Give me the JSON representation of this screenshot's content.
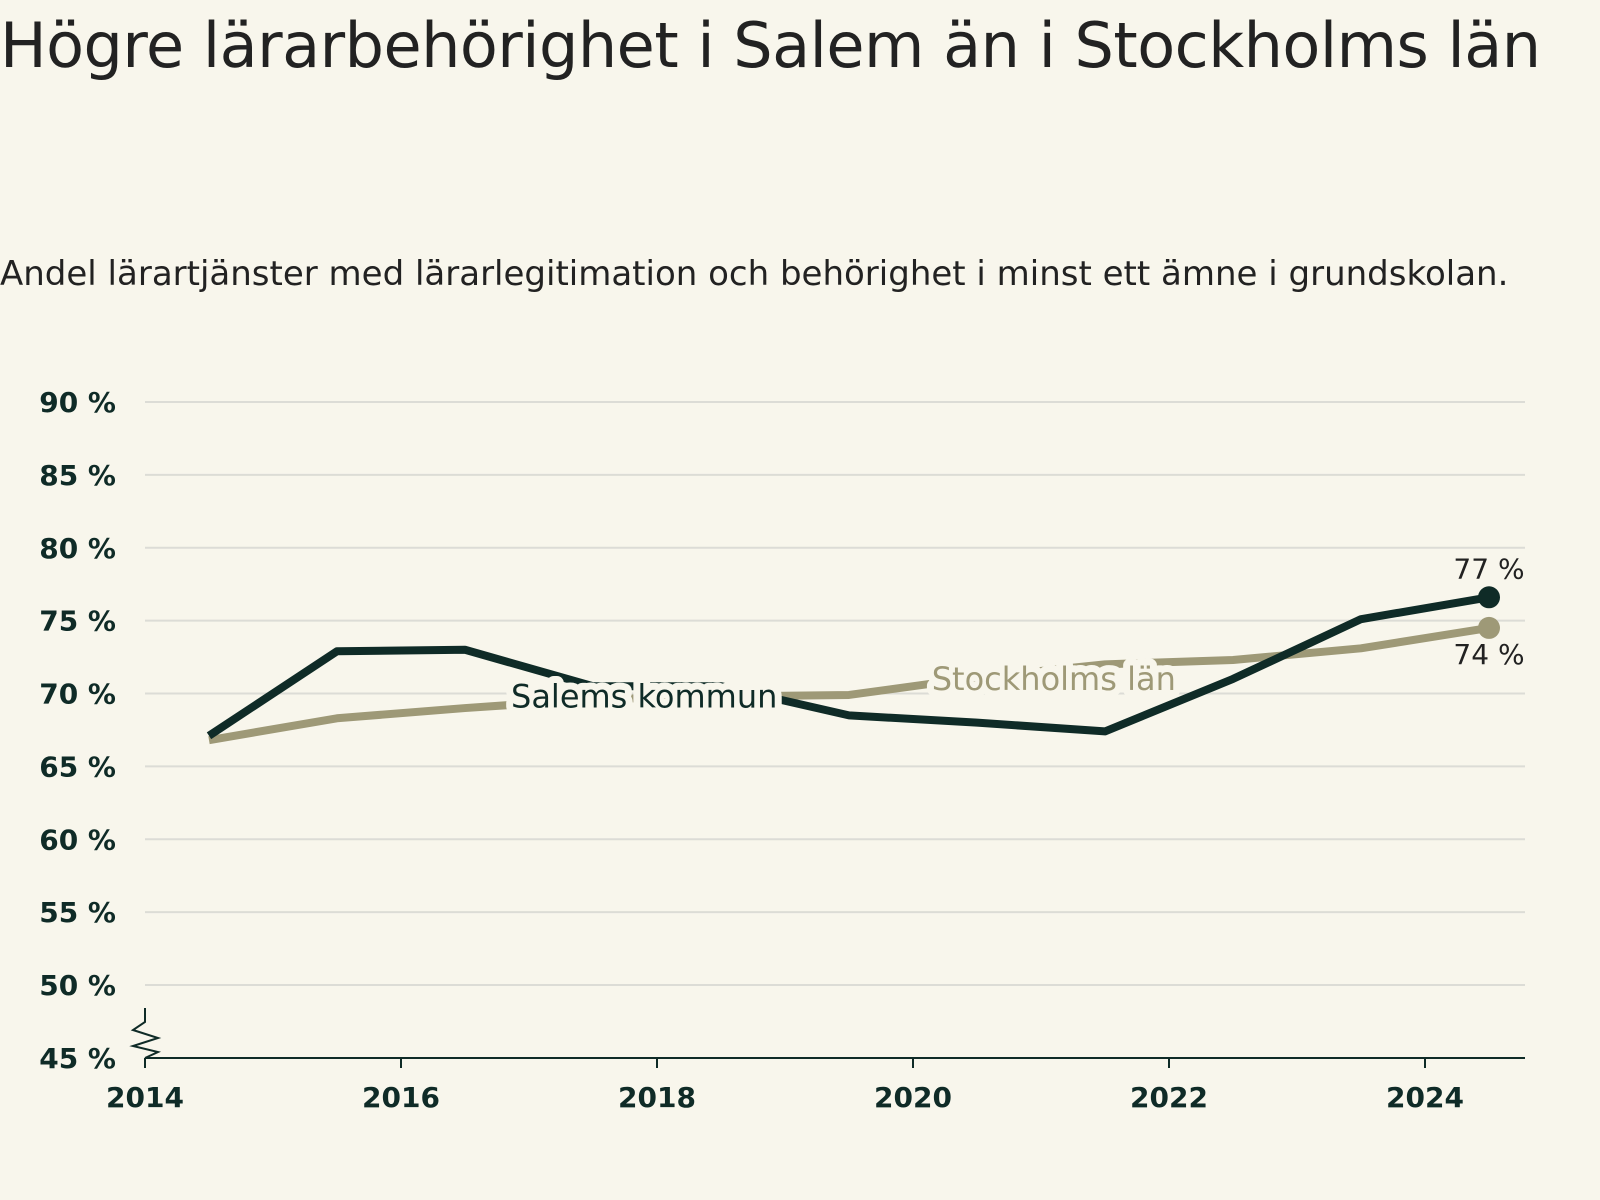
{
  "title": "Högre lärarbehörighet i Salem än i Stockholms län",
  "subtitle": "Andel lärartjänster med lärarlegitimation och behörighet i minst ett ämne i grundskolan.",
  "colors": {
    "background": "#f8f6ec",
    "salem": "#0f2b27",
    "stockholm": "#9e9977",
    "grid": "#dcdcd6",
    "axis": "#0f2b27"
  },
  "chart_data": {
    "type": "line",
    "title": "Högre lärarbehörighet i Salem än i Stockholms län",
    "subtitle": "Andel lärartjänster med lärarlegitimation och behörighet i minst ett ämne i grundskolan.",
    "xlabel": "",
    "ylabel": "",
    "xlim": [
      2014,
      2025
    ],
    "ylim": [
      45,
      90
    ],
    "y_axis_break": true,
    "grid": "horizontal",
    "x_ticks": [
      2014,
      2016,
      2018,
      2020,
      2022,
      2024
    ],
    "x_tick_labels": [
      "2014",
      "2016",
      "2018",
      "2020",
      "2022",
      "2024"
    ],
    "y_ticks": [
      45,
      50,
      55,
      60,
      65,
      70,
      75,
      80,
      85,
      90
    ],
    "y_tick_labels": [
      "45 %",
      "50 %",
      "55 %",
      "60 %",
      "65 %",
      "70 %",
      "75 %",
      "80 %",
      "85 %",
      "90 %"
    ],
    "series": [
      {
        "name": "Salems kommun",
        "color": "#0f2b27",
        "x": [
          2014.5,
          2015.5,
          2016.5,
          2017.5,
          2018.5,
          2019.5,
          2020.5,
          2021.5,
          2022.5,
          2023.5,
          2024.5
        ],
        "values": [
          67.1,
          72.9,
          73.0,
          70.5,
          70.5,
          68.5,
          68.0,
          67.4,
          71.0,
          75.1,
          76.6
        ],
        "end_label": "77 %"
      },
      {
        "name": "Stockholms län",
        "color": "#9e9977",
        "x": [
          2014.5,
          2015.5,
          2016.5,
          2017.5,
          2018.5,
          2019.5,
          2020.5,
          2021.5,
          2022.5,
          2023.5,
          2024.5
        ],
        "values": [
          66.8,
          68.3,
          69.0,
          69.6,
          69.8,
          69.9,
          71.1,
          72.0,
          72.3,
          73.1,
          74.5
        ],
        "end_label": "74 %"
      }
    ]
  }
}
